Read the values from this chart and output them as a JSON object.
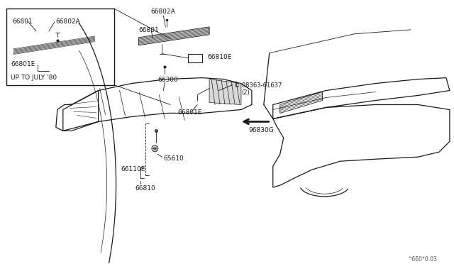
{
  "bg_color": "#ffffff",
  "line_color": "#1a1a1a",
  "gray": "#999999",
  "light_gray": "#cccccc",
  "page_ref": "^660*0.03",
  "labels": {
    "66801_inset": "66801",
    "66802A_inset": "66802A",
    "66801E_inset": "66801E",
    "up_to_july": "UP TO JULY '80",
    "66802A_main": "66802A",
    "66801_main": "66801",
    "66810E": "66810E",
    "08363_line1": "© 08363-61637",
    "08363_line2": "  (2)",
    "66801E_main": "66801E",
    "96830G": "96830G",
    "66300": "66300",
    "65610": "65610",
    "66110E": "66110E",
    "66810": "66810"
  }
}
